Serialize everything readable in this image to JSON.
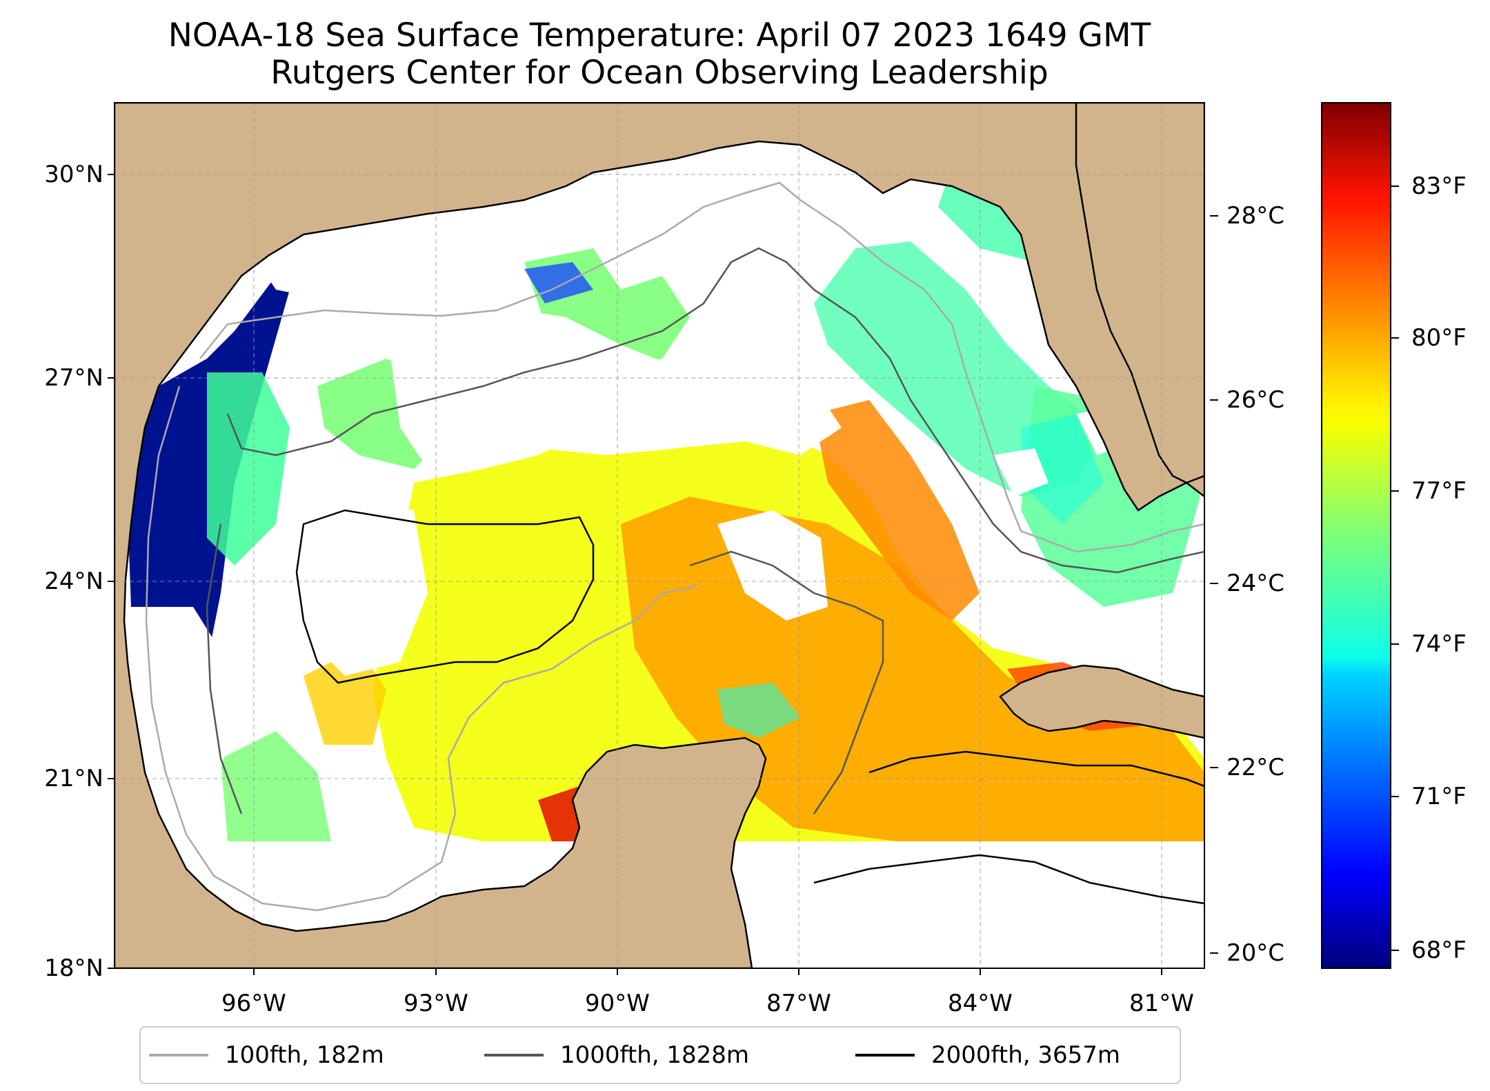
{
  "title": {
    "line1": "NOAA-18 Sea Surface Temperature: April 07 2023 1649 GMT",
    "line2": "Rutgers Center for Ocean Observing Leadership"
  },
  "map": {
    "region": "Gulf of Mexico",
    "lon_range": [
      -98.2,
      -80.2
    ],
    "lat_range": [
      18.0,
      31.0
    ],
    "gridlines": true,
    "land_color": "#D2B48C",
    "nodata_color": "#FFFFFF",
    "lat_labels": [
      "30°N",
      "27°N",
      "24°N",
      "21°N",
      "18°N"
    ],
    "lon_labels": [
      "96°W",
      "93°W",
      "90°W",
      "87°W",
      "84°W",
      "81°W"
    ]
  },
  "colorbar": {
    "colormap": "jet",
    "celsius_labels": [
      "28°C",
      "26°C",
      "24°C",
      "22°C",
      "20°C"
    ],
    "fahrenheit_labels": [
      "83°F",
      "80°F",
      "77°F",
      "74°F",
      "71°F",
      "68°F"
    ],
    "range_f": [
      67.5,
      85.0
    ]
  },
  "legend": {
    "position": "bottom",
    "items": [
      {
        "label": "100fth, 182m",
        "color": "#AAAAAA"
      },
      {
        "label": "1000fth, 1828m",
        "color": "#555555"
      },
      {
        "label": "2000fth, 3657m",
        "color": "#000000"
      }
    ]
  }
}
